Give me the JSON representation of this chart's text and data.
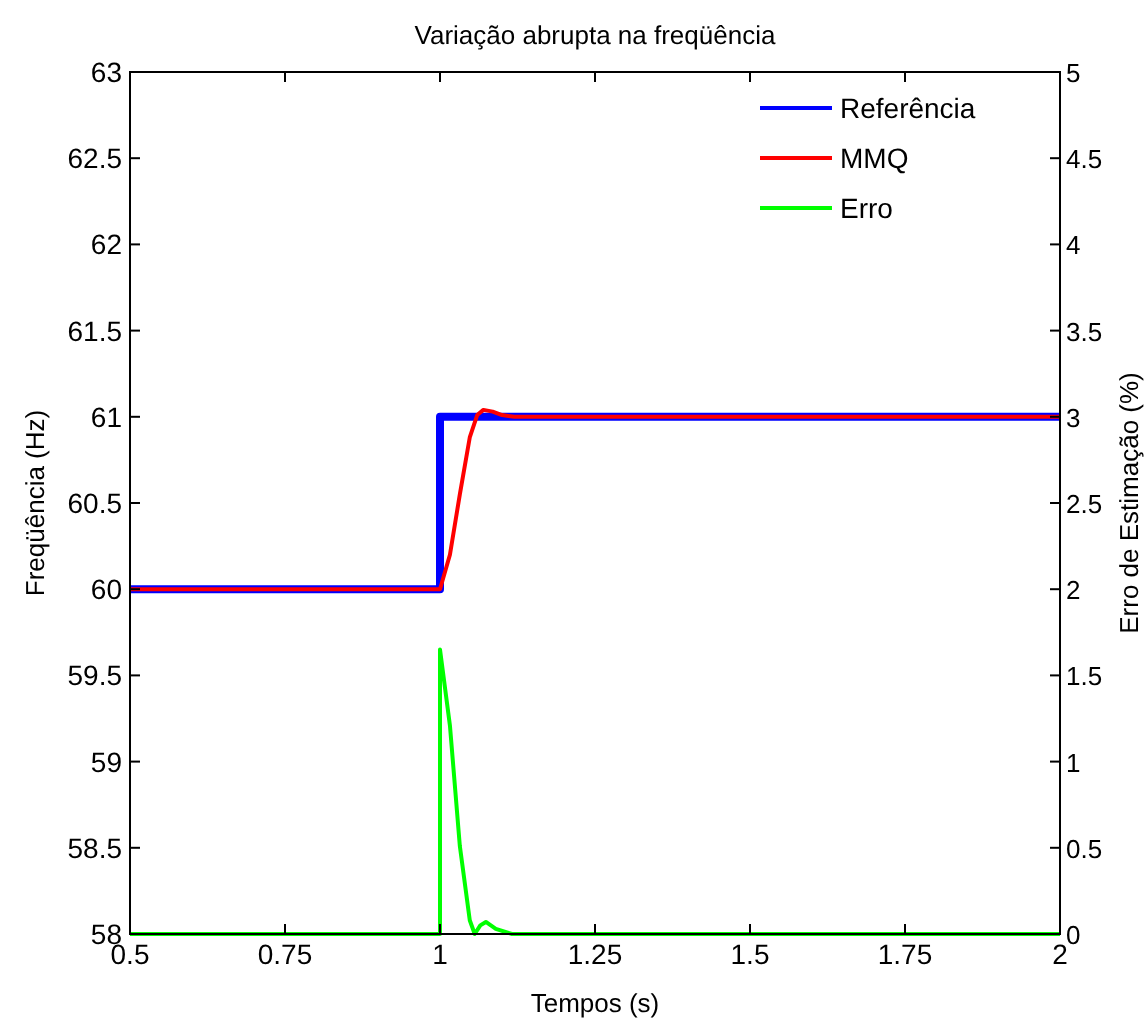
{
  "chart_data": {
    "type": "line",
    "title": "Variação abrupta na freqüência",
    "xlabel": "Tempos (s)",
    "ylabel": "Freqüência (Hz)",
    "y2label": "Erro de Estimação (%)",
    "xlim": [
      0.5,
      2
    ],
    "xticks": [
      0.5,
      0.75,
      1,
      1.25,
      1.5,
      1.75,
      2
    ],
    "ylim": [
      58,
      63
    ],
    "yticks": [
      58,
      58.5,
      59,
      59.5,
      60,
      60.5,
      61,
      61.5,
      62,
      62.5,
      63
    ],
    "y2lim": [
      0,
      5
    ],
    "y2ticks": [
      0,
      0.5,
      1,
      1.5,
      2,
      2.5,
      3,
      3.5,
      4,
      4.5,
      5
    ],
    "grid": false,
    "legend": "top right",
    "marker": "none",
    "line_style": "solid",
    "series": [
      {
        "name": "Referência",
        "color": "#0000ff",
        "x": [
          0.5,
          1,
          1,
          2
        ],
        "values": [
          60,
          60,
          61,
          61
        ]
      },
      {
        "name": "MMQ",
        "color": "#ff0000",
        "x": [
          0.5,
          1,
          1.016,
          1.032,
          1.048,
          1.06,
          1.07,
          1.085,
          1.1,
          1.12,
          2
        ],
        "values": [
          60,
          60,
          60.2,
          60.55,
          60.88,
          61.01,
          61.04,
          61.03,
          61.01,
          61,
          61
        ]
      },
      {
        "name": "Erro",
        "color": "#00ff00",
        "axis": "y2",
        "x": [
          0.5,
          1,
          1,
          1.016,
          1.032,
          1.048,
          1.056,
          1.065,
          1.074,
          1.09,
          1.116,
          2
        ],
        "values": [
          0,
          0,
          1.65,
          1.21,
          0.51,
          0.08,
          0,
          0.05,
          0.07,
          0.03,
          0,
          0
        ]
      }
    ]
  }
}
